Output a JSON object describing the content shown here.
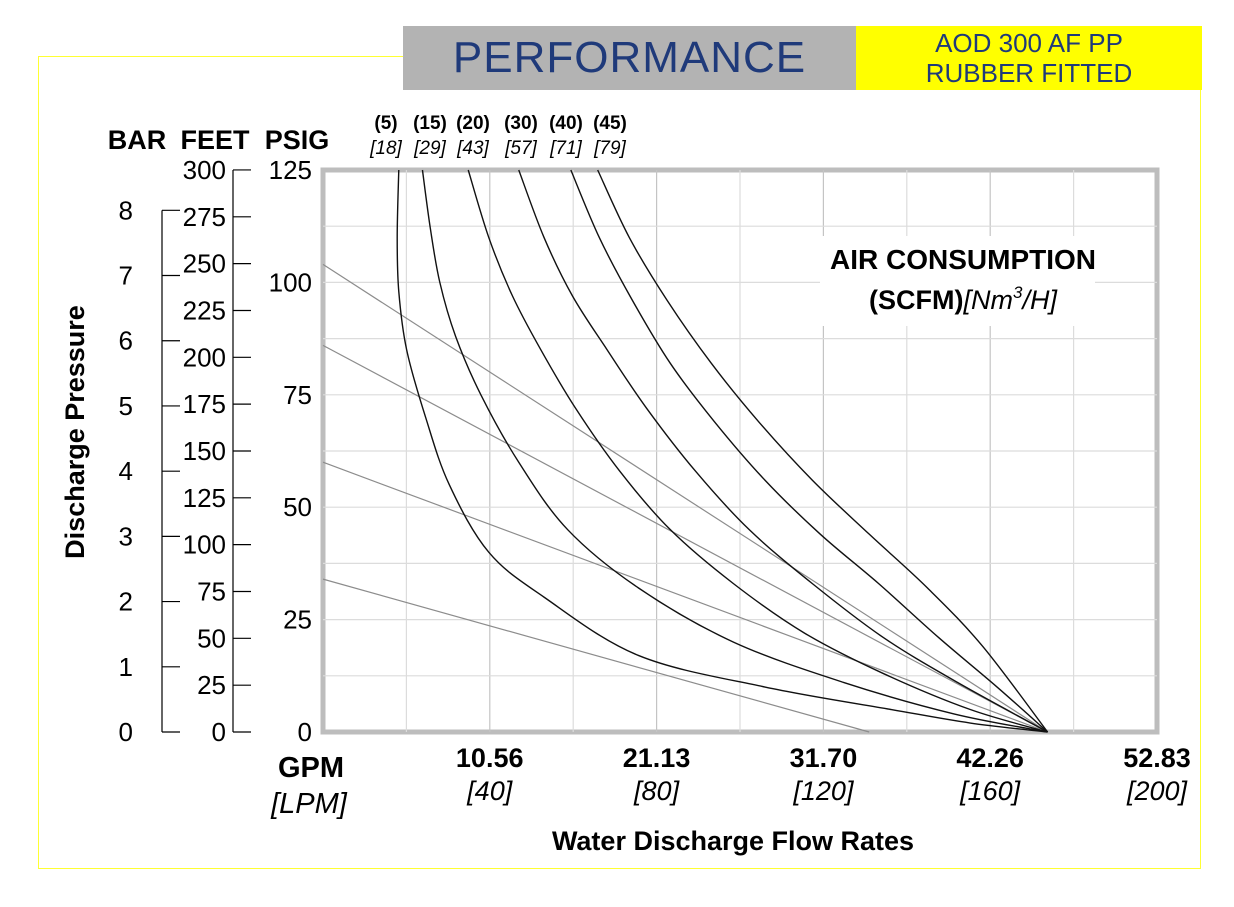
{
  "header": {
    "title": "PERFORMANCE",
    "model_line1": "AOD 300 AF PP",
    "model_line2": "RUBBER FITTED"
  },
  "colors": {
    "title_bg": "#b3b3b3",
    "title_text": "#1f3a7a",
    "model_bg": "#ffff00",
    "frame": "#ffff33"
  },
  "chart_data": {
    "type": "line",
    "title": "",
    "xlabel": "Water Discharge Flow Rates",
    "ylabel": "Discharge Pressure",
    "x_unit_primary": "GPM",
    "x_unit_secondary": "[LPM]",
    "xlim_gpm": [
      0,
      52.83
    ],
    "ylim_psig": [
      0,
      125
    ],
    "grid": true,
    "x_ticks": [
      {
        "gpm": "10.56",
        "lpm": "[40]",
        "value": 10.56
      },
      {
        "gpm": "21.13",
        "lpm": "[80]",
        "value": 21.13
      },
      {
        "gpm": "31.70",
        "lpm": "[120]",
        "value": 31.7
      },
      {
        "gpm": "42.26",
        "lpm": "[160]",
        "value": 42.26
      },
      {
        "gpm": "52.83",
        "lpm": "[200]",
        "value": 52.83
      }
    ],
    "axes_y": [
      {
        "label": "BAR",
        "ticks": [
          "0",
          "1",
          "2",
          "3",
          "4",
          "5",
          "6",
          "7",
          "8"
        ],
        "values": [
          0,
          1,
          2,
          3,
          4,
          5,
          6,
          7,
          8
        ],
        "psig_per_unit": 14.5038
      },
      {
        "label": "FEET",
        "ticks": [
          "0",
          "25",
          "50",
          "75",
          "100",
          "125",
          "150",
          "175",
          "200",
          "225",
          "250",
          "275",
          "300"
        ],
        "values": [
          0,
          25,
          50,
          75,
          100,
          125,
          150,
          175,
          200,
          225,
          250,
          275,
          300
        ],
        "psig_per_unit": 0.4167
      },
      {
        "label": "PSIG",
        "ticks": [
          "0",
          "25",
          "50",
          "75",
          "100",
          "125"
        ],
        "values": [
          0,
          25,
          50,
          75,
          100,
          125
        ],
        "psig_per_unit": 1
      }
    ],
    "air_consumption_label_line1": "AIR CONSUMPTION",
    "air_consumption_label_line2_bold": "(SCFM)",
    "air_consumption_label_line2_italic_a": "[Nm",
    "air_consumption_label_line2_sup": "3",
    "air_consumption_label_line2_italic_b": "/H]",
    "curve_labels": [
      {
        "scfm": "(5)",
        "nm3h": "[18]",
        "top_gpm": 4.8
      },
      {
        "scfm": "(15)",
        "nm3h": "[29]",
        "top_gpm": 6.3
      },
      {
        "scfm": "(20)",
        "nm3h": "[43]",
        "top_gpm": 9.2
      },
      {
        "scfm": "(30)",
        "nm3h": "[57]",
        "top_gpm": 12.4
      },
      {
        "scfm": "(40)",
        "nm3h": "[71]",
        "top_gpm": 15.7
      },
      {
        "scfm": "(45)",
        "nm3h": "[79]",
        "top_gpm": 17.4
      }
    ],
    "series": [
      {
        "x": [
          4.8,
          4.7,
          4.8,
          5.3,
          6.5,
          8.0,
          10.5,
          14.0,
          20.0,
          28.0,
          36.0,
          41.0,
          45.9
        ],
        "y": [
          125,
          110,
          98,
          85,
          70,
          55,
          40,
          30,
          17,
          10,
          5,
          2,
          0
        ]
      },
      {
        "x": [
          6.3,
          6.8,
          7.4,
          8.4,
          10.0,
          12.4,
          15.5,
          20.0,
          26.0,
          33.0,
          40.0,
          45.9
        ],
        "y": [
          125,
          112,
          100,
          88,
          75,
          60,
          45,
          32,
          20,
          11,
          4,
          0
        ]
      },
      {
        "x": [
          9.2,
          10.5,
          12.0,
          13.8,
          16.0,
          18.8,
          22.0,
          26.0,
          30.5,
          35.5,
          41.0,
          45.9
        ],
        "y": [
          125,
          110,
          97,
          85,
          72,
          58,
          45,
          33,
          22,
          13,
          5,
          0
        ]
      },
      {
        "x": [
          12.4,
          14.0,
          15.8,
          18.0,
          20.5,
          23.6,
          27.0,
          31.0,
          35.5,
          40.2,
          45.9
        ],
        "y": [
          125,
          110,
          97,
          85,
          72,
          58,
          45,
          33,
          21,
          11,
          0
        ]
      },
      {
        "x": [
          15.7,
          17.5,
          19.6,
          22.0,
          24.8,
          28.0,
          31.5,
          35.2,
          39.0,
          42.7,
          45.9
        ],
        "y": [
          125,
          110,
          96,
          82,
          69,
          56,
          44,
          33,
          21,
          10,
          0
        ]
      },
      {
        "x": [
          17.4,
          19.4,
          21.8,
          24.6,
          27.6,
          31.0,
          34.6,
          38.3,
          41.8,
          45.9
        ],
        "y": [
          125,
          110,
          96,
          82,
          69,
          56,
          44,
          32,
          19,
          0
        ]
      }
    ],
    "npsh_lines": [
      {
        "x": [
          0,
          45.9
        ],
        "y": [
          104,
          0
        ]
      },
      {
        "x": [
          0,
          45.9
        ],
        "y": [
          86,
          0
        ]
      },
      {
        "x": [
          0,
          45.9
        ],
        "y": [
          60,
          0
        ]
      },
      {
        "x": [
          0,
          34.6
        ],
        "y": [
          34,
          0
        ]
      }
    ]
  }
}
